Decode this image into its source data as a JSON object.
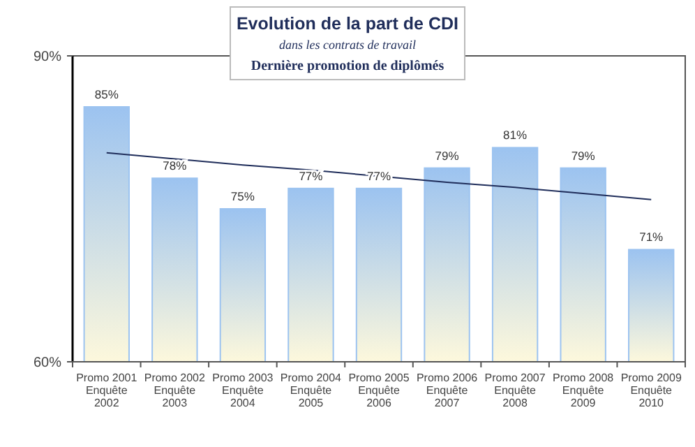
{
  "chart_data": {
    "type": "bar",
    "title": "Evolution de la part de CDI",
    "subtitle": "dans les contrats de travail",
    "annotations": [
      "Dernière promotion de diplômés"
    ],
    "categories": [
      "Promo 2001\nEnquête\n2002",
      "Promo 2002\nEnquête\n2003",
      "Promo 2003\nEnquête\n2004",
      "Promo 2004\nEnquête\n2005",
      "Promo 2005\nEnquête\n2006",
      "Promo 2006\nEnquête\n2007",
      "Promo 2007\nEnquête\n2008",
      "Promo 2008\nEnquête\n2009",
      "Promo 2009\nEnquête\n2010"
    ],
    "series": [
      {
        "color": "#9cc3f0",
        "values": [
          85,
          78,
          75,
          77,
          77,
          79,
          81,
          79,
          71
        ],
        "value_labels": [
          "85%",
          "78%",
          "75%",
          "77%",
          "77%",
          "79%",
          "81%",
          "79%",
          "71%"
        ]
      },
      {
        "type": "line",
        "color": "#1f2d5a",
        "values": [
          80.5,
          79.9,
          79.3,
          78.8,
          78.2,
          77.6,
          77.1,
          76.5,
          75.9
        ]
      }
    ],
    "ylim": [
      60,
      90
    ],
    "yticks": [
      {
        "value": 60,
        "label": "60%"
      },
      {
        "value": 90,
        "label": "90%"
      }
    ],
    "marker": "none"
  }
}
